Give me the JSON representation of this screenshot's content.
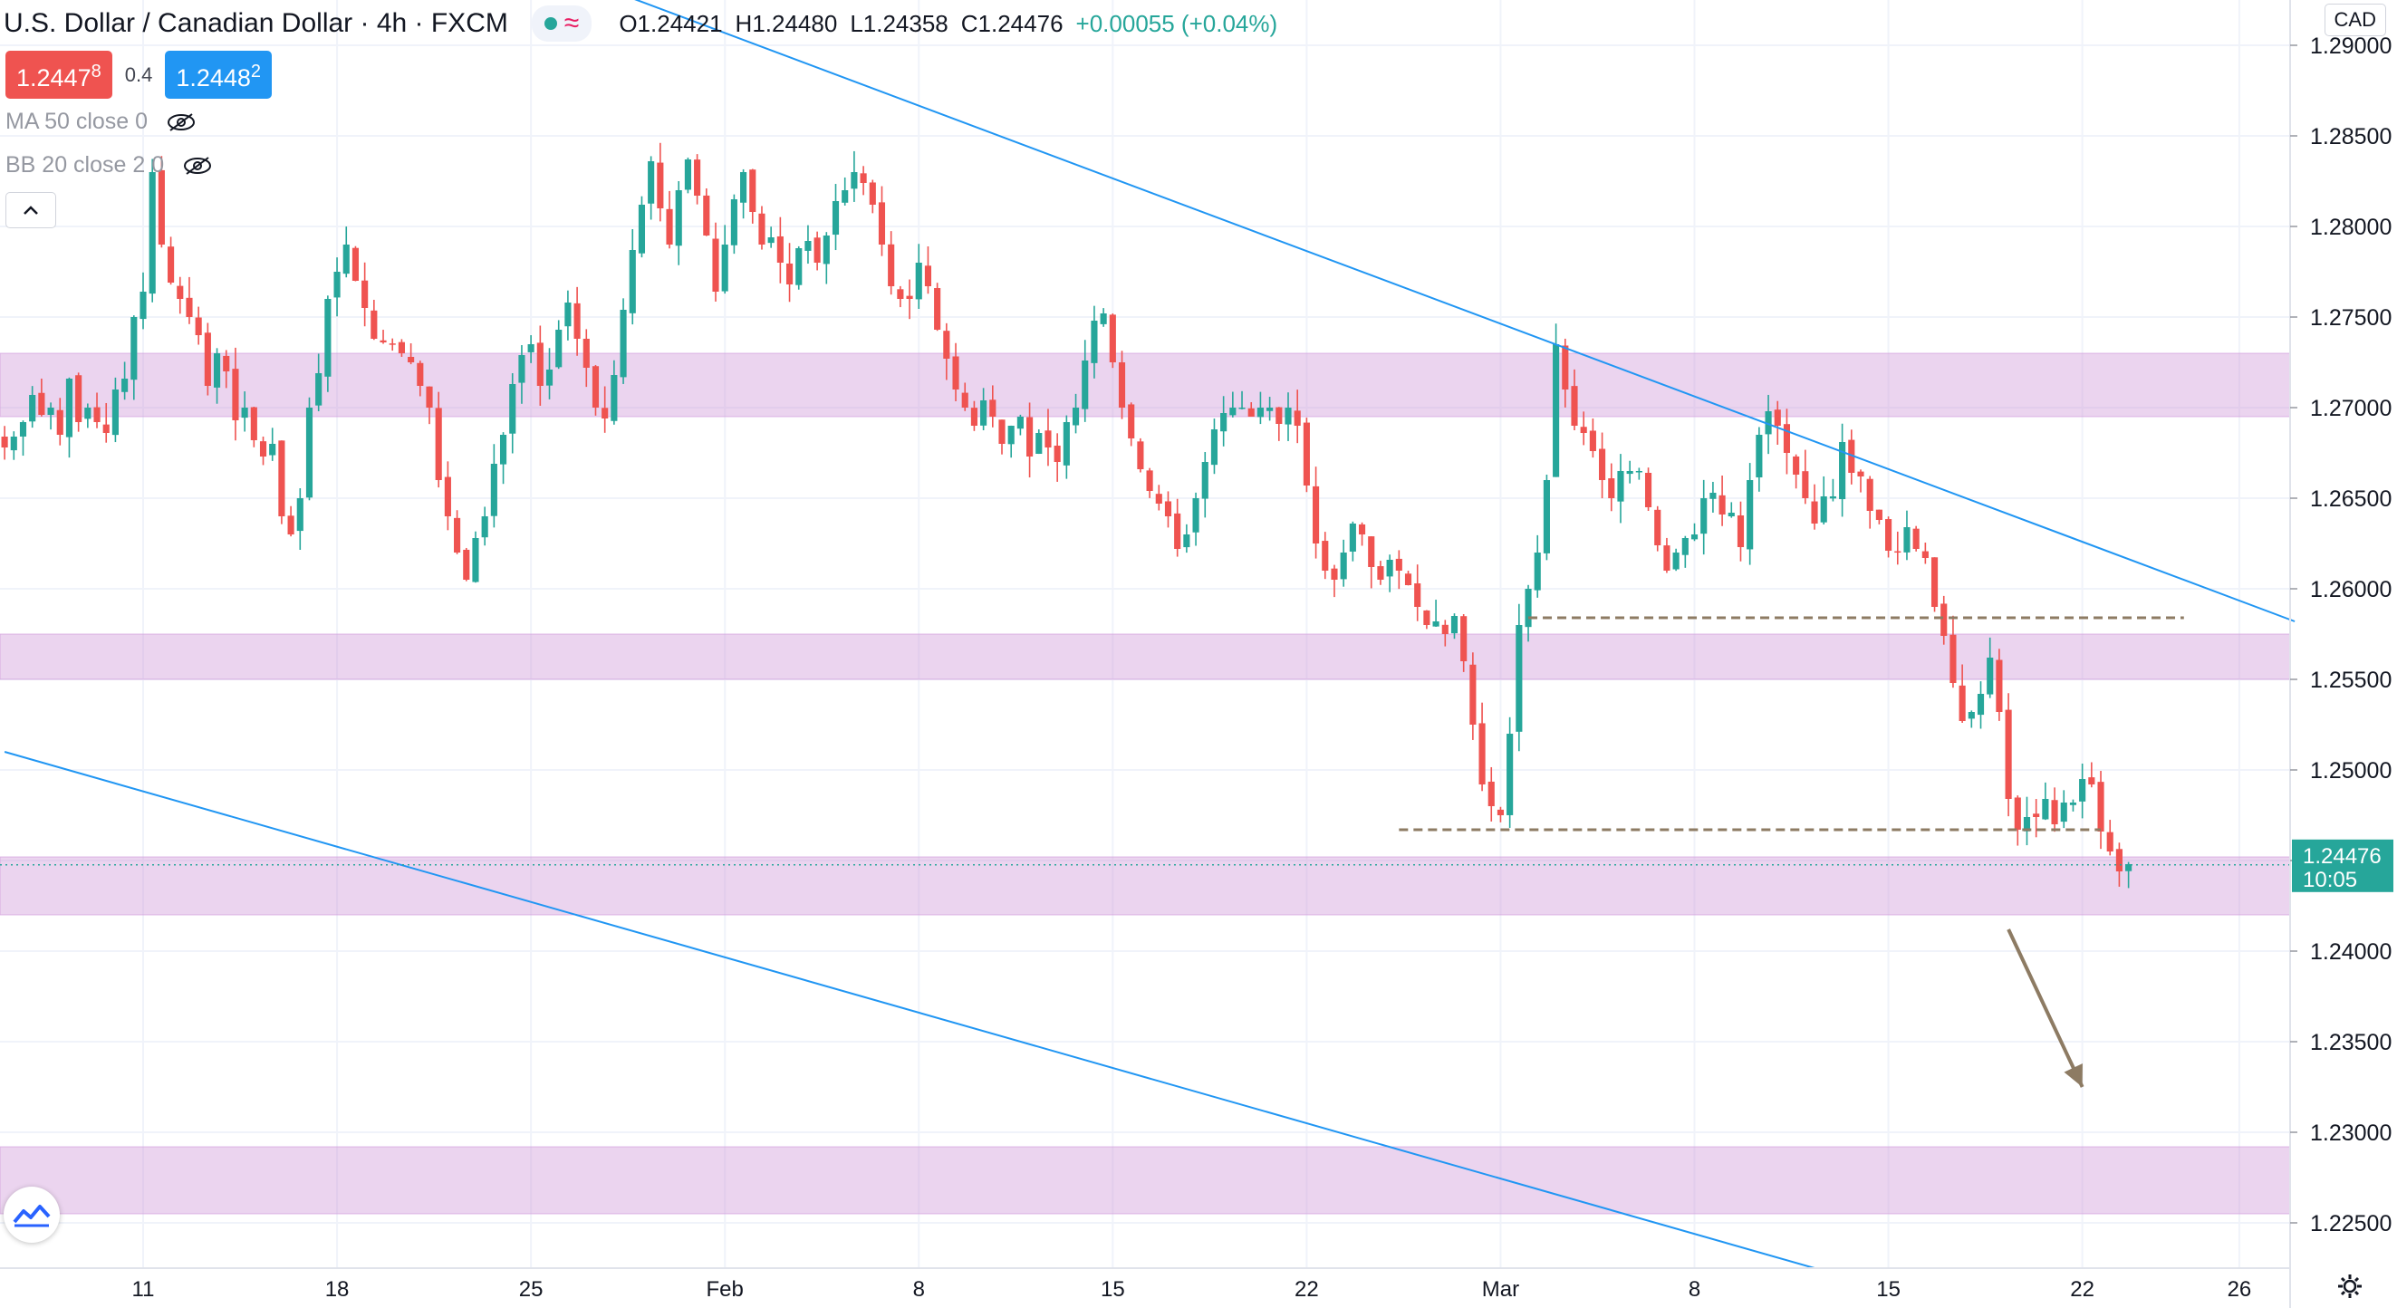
{
  "header": {
    "symbol_title": "U.S. Dollar / Canadian Dollar · 4h · FXCM",
    "open": "O1.24421",
    "high": "H1.24480",
    "low": "L1.24358",
    "close": "C1.24476",
    "change": "+0.00055 (+0.04%)"
  },
  "trade": {
    "sell_main": "1.2447",
    "sell_pip": "8",
    "spread": "0.4",
    "buy_main": "1.2448",
    "buy_pip": "2"
  },
  "indicators": [
    {
      "label": "MA 50 close 0"
    },
    {
      "label": "BB 20 close 2 0"
    }
  ],
  "currency": "CAD",
  "last_price": {
    "value": "1.24476",
    "countdown": "10:05"
  },
  "colors": {
    "up": "#26a69a",
    "down": "#ef5350",
    "zone": "#ce93d8",
    "trendline": "#2196f3",
    "support_dash": "#8d7b63",
    "arrow": "#8d7b63"
  },
  "icons": [
    "eye-off-icon",
    "chevron-up-icon",
    "tradingview-logo-icon",
    "settings-gear-icon"
  ],
  "chart_data": {
    "type": "candlestick",
    "ylim": [
      1.2225,
      1.2925
    ],
    "y_ticks": [
      "1.29000",
      "1.28500",
      "1.28000",
      "1.27500",
      "1.27000",
      "1.26500",
      "1.26000",
      "1.25500",
      "1.25000",
      "1.24500",
      "1.24000",
      "1.23500",
      "1.23000",
      "1.22500"
    ],
    "y_tick_values": [
      1.29,
      1.285,
      1.28,
      1.275,
      1.27,
      1.265,
      1.26,
      1.255,
      1.25,
      1.245,
      1.24,
      1.235,
      1.23,
      1.225
    ],
    "x_ticks": [
      {
        "label": "11",
        "bar": 15
      },
      {
        "label": "18",
        "bar": 36
      },
      {
        "label": "25",
        "bar": 57
      },
      {
        "label": "Feb",
        "bar": 78
      },
      {
        "label": "8",
        "bar": 99
      },
      {
        "label": "15",
        "bar": 120
      },
      {
        "label": "22",
        "bar": 141
      },
      {
        "label": "Mar",
        "bar": 162
      },
      {
        "label": "8",
        "bar": 183
      },
      {
        "label": "15",
        "bar": 204
      },
      {
        "label": "22",
        "bar": 225
      },
      {
        "label": "26",
        "bar": 242
      }
    ],
    "bar_count_visible": 248,
    "closes": [
      1.2678,
      1.2684,
      1.2692,
      1.2707,
      1.2696,
      1.27,
      1.2685,
      1.2716,
      1.2692,
      1.27,
      1.2692,
      1.2686,
      1.271,
      1.2716,
      1.275,
      1.2764,
      1.283,
      1.279,
      1.2769,
      1.276,
      1.275,
      1.274,
      1.2712,
      1.273,
      1.272,
      1.2693,
      1.27,
      1.2682,
      1.2673,
      1.268,
      1.264,
      1.263,
      1.265,
      1.27,
      1.2719,
      1.276,
      1.2775,
      1.279,
      1.277,
      1.2755,
      1.2738,
      1.2736,
      1.2735,
      1.273,
      1.2725,
      1.2712,
      1.27,
      1.266,
      1.264,
      1.262,
      1.2605,
      1.2628,
      1.264,
      1.2669,
      1.2685,
      1.2713,
      1.2729,
      1.2735,
      1.2712,
      1.2721,
      1.2743,
      1.2758,
      1.2738,
      1.2722,
      1.27,
      1.2694,
      1.2718,
      1.2754,
      1.2787,
      1.2812,
      1.2836,
      1.281,
      1.279,
      1.282,
      1.2837,
      1.2817,
      1.2795,
      1.2764,
      1.279,
      1.2815,
      1.283,
      1.2808,
      1.279,
      1.2794,
      1.278,
      1.2768,
      1.2788,
      1.2792,
      1.278,
      1.2795,
      1.2814,
      1.282,
      1.283,
      1.2824,
      1.2812,
      1.279,
      1.2767,
      1.276,
      1.276,
      1.278,
      1.2767,
      1.2743,
      1.2727,
      1.271,
      1.27,
      1.269,
      1.2704,
      1.2695,
      1.268,
      1.269,
      1.2695,
      1.2673,
      1.2686,
      1.2678,
      1.267,
      1.2692,
      1.27,
      1.2726,
      1.2748,
      1.2752,
      1.2725,
      1.27,
      1.2683,
      1.2666,
      1.2654,
      1.2647,
      1.264,
      1.2622,
      1.263,
      1.265,
      1.267,
      1.2688,
      1.2697,
      1.27,
      1.27,
      1.2695,
      1.27,
      1.27,
      1.2691,
      1.27,
      1.269,
      1.2657,
      1.2625,
      1.261,
      1.2605,
      1.262,
      1.2636,
      1.263,
      1.2612,
      1.2605,
      1.2616,
      1.261,
      1.2602,
      1.259,
      1.258,
      1.2582,
      1.2575,
      1.2585,
      1.256,
      1.2525,
      1.2492,
      1.248,
      1.2475,
      1.252,
      1.258,
      1.26,
      1.262,
      1.266,
      1.2735,
      1.271,
      1.269,
      1.2686,
      1.2676,
      1.266,
      1.265,
      1.2665,
      1.2665,
      1.2665,
      1.2645,
      1.2624,
      1.261,
      1.262,
      1.2628,
      1.263,
      1.265,
      1.2653,
      1.2641,
      1.2642,
      1.2623,
      1.266,
      1.2685,
      1.2698,
      1.269,
      1.2675,
      1.2663,
      1.265,
      1.2636,
      1.2651,
      1.2651,
      1.2681,
      1.2664,
      1.2662,
      1.2643,
      1.2638,
      1.2621,
      1.262,
      1.2634,
      1.2622,
      1.2617,
      1.259,
      1.2574,
      1.2548,
      1.2527,
      1.2532,
      1.2542,
      1.2562,
      1.2532,
      1.2484,
      1.2467,
      1.2474,
      1.2474,
      1.2484,
      1.247,
      1.2482,
      1.2482,
      1.2495,
      1.2492,
      1.2466,
      1.2455,
      1.2444,
      1.2448
    ],
    "annotations": {
      "zones": [
        [
          1.2695,
          1.273
        ],
        [
          1.255,
          1.2575
        ],
        [
          1.242,
          1.2452
        ],
        [
          1.2255,
          1.2292
        ]
      ],
      "dashed_levels": [
        {
          "price": 1.2584,
          "from_bar": 165,
          "to_bar": 236
        },
        {
          "price": 1.2467,
          "from_bar": 151,
          "to_bar": 227
        }
      ],
      "trendlines": [
        {
          "from": [
            58,
            1.2945
          ],
          "to": [
            248,
            1.2582
          ]
        },
        {
          "from": [
            0,
            1.251
          ],
          "to": [
            196,
            1.2225
          ]
        }
      ],
      "projection_arrow": {
        "from": [
          217,
          1.2412
        ],
        "to": [
          225,
          1.2325
        ]
      }
    }
  }
}
